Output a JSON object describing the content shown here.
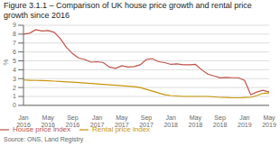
{
  "chart_data": {
    "type": "line",
    "title": "Figure 3.1.1 – Comparison of UK house price growth and rental price growth since 2016",
    "ylabel": "%",
    "annotations": [
      "Source: ONS, Land Registry"
    ],
    "categories": [
      "Jan\n2016",
      null,
      null,
      null,
      "May\n2016",
      null,
      null,
      null,
      "Sep\n2016",
      null,
      null,
      null,
      "Jan\n2017",
      null,
      null,
      null,
      "May\n2017",
      null,
      null,
      null,
      "Sep\n2017",
      null,
      null,
      null,
      "Jan\n2018",
      null,
      null,
      null,
      "May\n2018",
      null,
      null,
      null,
      "Sep\n2018",
      null,
      null,
      null,
      "Jan\n2019",
      null,
      null,
      null,
      "May\n2019"
    ],
    "series": [
      {
        "name": "House price index",
        "color": "#c0524a",
        "values": [
          8.0,
          8.1,
          8.5,
          8.35,
          8.4,
          8.2,
          7.5,
          6.5,
          5.8,
          5.3,
          5.15,
          4.85,
          4.9,
          4.8,
          4.3,
          4.15,
          4.45,
          4.3,
          4.35,
          4.55,
          5.15,
          5.25,
          4.9,
          4.8,
          4.6,
          4.65,
          4.55,
          4.55,
          4.6,
          4.0,
          3.5,
          3.3,
          3.1,
          3.15,
          3.1,
          3.1,
          2.8,
          1.2,
          1.5,
          1.7,
          1.5
        ]
      },
      {
        "name": "Rental price index",
        "color": "#c8960a",
        "values": [
          2.85,
          2.82,
          2.8,
          2.78,
          2.76,
          2.72,
          2.68,
          2.64,
          2.6,
          2.55,
          2.5,
          2.45,
          2.4,
          2.35,
          2.3,
          2.25,
          2.2,
          2.15,
          2.1,
          2.0,
          1.8,
          1.6,
          1.4,
          1.2,
          1.1,
          1.05,
          1.0,
          1.0,
          1.0,
          1.0,
          1.0,
          0.95,
          0.9,
          0.88,
          0.85,
          0.85,
          0.88,
          0.9,
          1.1,
          1.35,
          1.4
        ]
      }
    ],
    "ylim": [
      0,
      9
    ],
    "yticks": [
      0,
      1,
      2,
      3,
      4,
      5,
      6,
      7,
      8,
      9
    ],
    "grid": true,
    "legend": "lower left"
  }
}
